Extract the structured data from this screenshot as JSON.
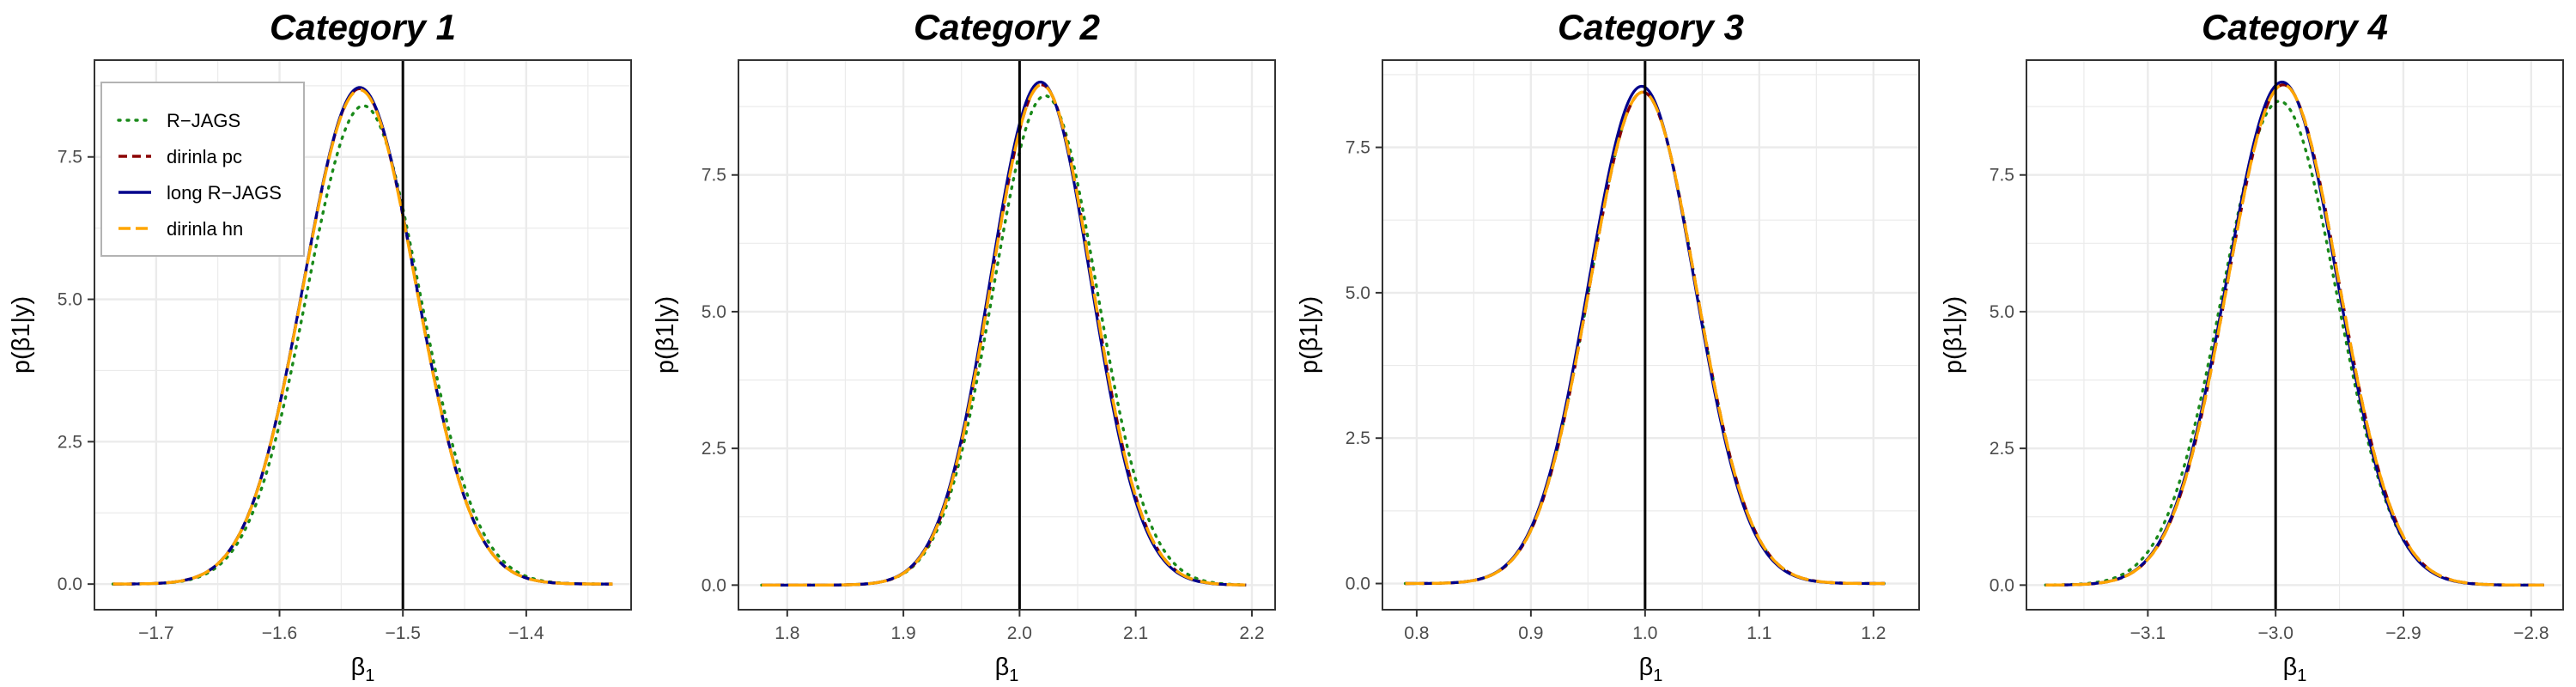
{
  "colors": {
    "rjags": "#1a8a1a",
    "dirinla_pc": "#8b0000",
    "long_rjags": "#00008b",
    "dirinla_hn": "#ffa500",
    "grid": "#ebebeb",
    "panel_border": "#333333",
    "true_value_line": "#000000"
  },
  "legend": {
    "placement": "top-left of first panel",
    "items": [
      {
        "label": "R−JAGS",
        "key": "rjags",
        "style": "dotted"
      },
      {
        "label": "dirinla pc",
        "key": "dirinla_pc",
        "style": "dashed"
      },
      {
        "label": "long R−JAGS",
        "key": "long_rjags",
        "style": "solid"
      },
      {
        "label": "dirinla hn",
        "key": "dirinla_hn",
        "style": "longdash"
      }
    ]
  },
  "chart_data": [
    {
      "type": "line",
      "title": "Category 1",
      "xlabel_main": "β",
      "xlabel_sub": "1",
      "ylabel": "p(β1|y)",
      "xlim": [
        -1.75,
        -1.315
      ],
      "ylim": [
        -0.45,
        9.2
      ],
      "xticks": [
        -1.7,
        -1.6,
        -1.5,
        -1.4
      ],
      "xtick_labels": [
        "−1.7",
        "−1.6",
        "−1.5",
        "−1.4"
      ],
      "yticks": [
        0,
        2.5,
        5,
        7.5
      ],
      "ytick_labels": [
        "0.0",
        "2.5",
        "5.0",
        "7.5"
      ],
      "grid": true,
      "true_value": -1.5,
      "x_range": [
        -1.735,
        -1.33
      ],
      "series": [
        {
          "key": "rjags",
          "mean": -1.532,
          "sd": 0.046,
          "peak": 8.4
        },
        {
          "key": "dirinla_pc",
          "mean": -1.535,
          "sd": 0.0455,
          "peak": 8.7
        },
        {
          "key": "long_rjags",
          "mean": -1.535,
          "sd": 0.0455,
          "peak": 8.72
        },
        {
          "key": "dirinla_hn",
          "mean": -1.535,
          "sd": 0.0455,
          "peak": 8.68
        }
      ]
    },
    {
      "type": "line",
      "title": "Category 2",
      "xlabel_main": "β",
      "xlabel_sub": "1",
      "ylabel": "p(β1|y)",
      "xlim": [
        1.758,
        2.22
      ],
      "ylim": [
        -0.45,
        9.6
      ],
      "xticks": [
        1.8,
        1.9,
        2.0,
        2.1,
        2.2
      ],
      "xtick_labels": [
        "1.8",
        "1.9",
        "2.0",
        "2.1",
        "2.2"
      ],
      "yticks": [
        0,
        2.5,
        5,
        7.5
      ],
      "ytick_labels": [
        "0.0",
        "2.5",
        "5.0",
        "7.5"
      ],
      "grid": true,
      "true_value": 2.0,
      "x_range": [
        1.778,
        2.195
      ],
      "series": [
        {
          "key": "rjags",
          "mean": 2.022,
          "sd": 0.0445,
          "peak": 8.95
        },
        {
          "key": "dirinla_pc",
          "mean": 2.019,
          "sd": 0.0435,
          "peak": 9.15
        },
        {
          "key": "long_rjags",
          "mean": 2.018,
          "sd": 0.0433,
          "peak": 9.2
        },
        {
          "key": "dirinla_hn",
          "mean": 2.019,
          "sd": 0.0435,
          "peak": 9.15
        }
      ]
    },
    {
      "type": "line",
      "title": "Category 3",
      "xlabel_main": "β",
      "xlabel_sub": "1",
      "ylabel": "p(β1|y)",
      "xlim": [
        0.77,
        1.24
      ],
      "ylim": [
        -0.45,
        9.0
      ],
      "xticks": [
        0.8,
        0.9,
        1.0,
        1.1,
        1.2
      ],
      "xtick_labels": [
        "0.8",
        "0.9",
        "1.0",
        "1.1",
        "1.2"
      ],
      "yticks": [
        0,
        2.5,
        5,
        7.5
      ],
      "ytick_labels": [
        "0.0",
        "2.5",
        "5.0",
        "7.5"
      ],
      "grid": true,
      "true_value": 1.0,
      "x_range": [
        0.79,
        1.21
      ],
      "series": [
        {
          "key": "rjags",
          "mean": 0.998,
          "sd": 0.0465,
          "peak": 8.45
        },
        {
          "key": "dirinla_pc",
          "mean": 0.998,
          "sd": 0.0465,
          "peak": 8.45
        },
        {
          "key": "long_rjags",
          "mean": 0.997,
          "sd": 0.0463,
          "peak": 8.55
        },
        {
          "key": "dirinla_hn",
          "mean": 0.998,
          "sd": 0.0465,
          "peak": 8.45
        }
      ]
    },
    {
      "type": "line",
      "title": "Category 4",
      "xlabel_main": "β",
      "xlabel_sub": "1",
      "ylabel": "p(β1|y)",
      "xlim": [
        -3.195,
        -2.775
      ],
      "ylim": [
        -0.45,
        9.6
      ],
      "xticks": [
        -3.2,
        -3.1,
        -3.0,
        -2.9,
        -2.8
      ],
      "xtick_labels": [
        "−3.2",
        "−3.1",
        "−3.0",
        "−2.9",
        "−2.8"
      ],
      "yticks": [
        0,
        2.5,
        5,
        7.5
      ],
      "ytick_labels": [
        "0.0",
        "2.5",
        "5.0",
        "7.5"
      ],
      "grid": true,
      "true_value": -3.0,
      "x_range": [
        -3.18,
        -2.79
      ],
      "series": [
        {
          "key": "rjags",
          "mean": -2.997,
          "sd": 0.0445,
          "peak": 8.85
        },
        {
          "key": "dirinla_pc",
          "mean": -2.994,
          "sd": 0.0435,
          "peak": 9.15
        },
        {
          "key": "long_rjags",
          "mean": -2.995,
          "sd": 0.0433,
          "peak": 9.2
        },
        {
          "key": "dirinla_hn",
          "mean": -2.994,
          "sd": 0.0435,
          "peak": 9.15
        }
      ]
    }
  ]
}
